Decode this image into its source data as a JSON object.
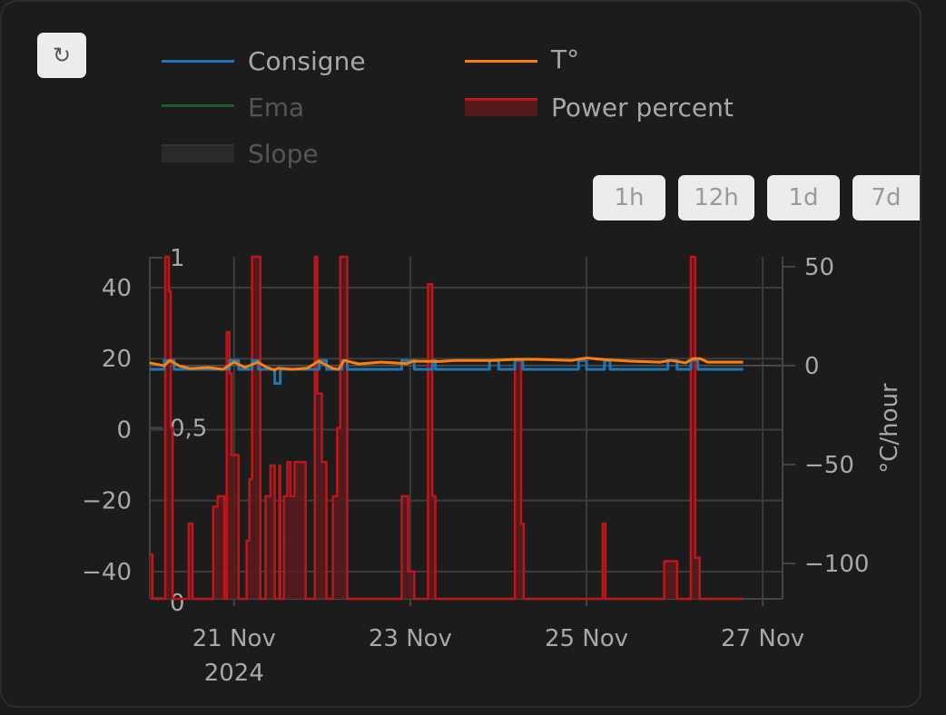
{
  "toolbar": {
    "refresh_icon": "↻",
    "refresh_icon_name": "refresh-icon"
  },
  "range_buttons": [
    {
      "label": "1h"
    },
    {
      "label": "12h"
    },
    {
      "label": "1d"
    },
    {
      "label": "7d"
    }
  ],
  "chart_data": {
    "type": "line",
    "x_axis": {
      "type": "date",
      "range": [
        "2024-11-20 01:03",
        "2024-11-27 05:25"
      ],
      "ticks": [
        {
          "value": "2024-11-21 00:00",
          "label": "21 Nov",
          "sublabel": "2024"
        },
        {
          "value": "2024-11-23 00:00",
          "label": "23 Nov"
        },
        {
          "value": "2024-11-25 00:00",
          "label": "25 Nov"
        },
        {
          "value": "2024-11-27 00:00",
          "label": "27 Nov"
        }
      ],
      "grid": true
    },
    "y_axis_left": {
      "range": [
        -47.7,
        48.7
      ],
      "ticks": [
        40,
        20,
        0,
        -20,
        -40
      ],
      "tick_labels": [
        "40",
        "20",
        "0",
        "−20",
        "−40"
      ],
      "grid": true
    },
    "y_axis_right": {
      "title": "°C/hour",
      "range": [
        -117.9,
        55
      ],
      "ticks": [
        50,
        0,
        -50,
        -100
      ],
      "tick_labels": [
        "50",
        "0",
        "−50",
        "−100"
      ],
      "zeroline": true
    },
    "y_axis_power": {
      "range": [
        0,
        1
      ],
      "ticks": [
        1,
        0.5,
        0
      ],
      "tick_labels": [
        "1",
        "0,5",
        "0"
      ]
    },
    "legend_placement": "top",
    "series": [
      {
        "name": "Consigne",
        "color": "#1f77b4",
        "axis": "left",
        "shape": "hv",
        "visible": true,
        "points": [
          [
            "2024-11-20 01:00",
            17
          ],
          [
            "2024-11-20 05:00",
            19.5
          ],
          [
            "2024-11-20 07:40",
            17
          ],
          [
            "2024-11-20 22:45",
            19.5
          ],
          [
            "2024-11-21 01:15",
            17
          ],
          [
            "2024-11-21 04:55",
            19.5
          ],
          [
            "2024-11-21 06:40",
            17
          ],
          [
            "2024-11-21 11:05",
            13
          ],
          [
            "2024-11-21 12:35",
            17
          ],
          [
            "2024-11-21 23:10",
            19.5
          ],
          [
            "2024-11-22 01:10",
            17
          ],
          [
            "2024-11-22 05:25",
            19.5
          ],
          [
            "2024-11-22 06:50",
            17
          ],
          [
            "2024-11-22 21:40",
            19.5
          ],
          [
            "2024-11-23 01:05",
            17
          ],
          [
            "2024-11-23 06:00",
            19.5
          ],
          [
            "2024-11-23 06:50",
            17
          ],
          [
            "2024-11-23 21:35",
            19.5
          ],
          [
            "2024-11-24 00:05",
            17
          ],
          [
            "2024-11-24 04:30",
            19.5
          ],
          [
            "2024-11-24 06:40",
            17
          ],
          [
            "2024-11-24 21:50",
            19.5
          ],
          [
            "2024-11-25 00:00",
            17
          ],
          [
            "2024-11-25 04:55",
            19.5
          ],
          [
            "2024-11-25 06:25",
            17
          ],
          [
            "2024-11-25 22:10",
            19.5
          ],
          [
            "2024-11-26 00:40",
            17
          ],
          [
            "2024-11-26 04:25",
            19.5
          ],
          [
            "2024-11-26 06:20",
            17
          ],
          [
            "2024-11-26 18:40",
            17
          ]
        ]
      },
      {
        "name": "T°",
        "color": "#ff7f0e",
        "axis": "left",
        "shape": "linear",
        "visible": true,
        "points": [
          [
            "2024-11-20 01:00",
            18.8
          ],
          [
            "2024-11-20 05:00",
            18
          ],
          [
            "2024-11-20 06:30",
            19.5
          ],
          [
            "2024-11-20 09:00",
            18
          ],
          [
            "2024-11-20 12:00",
            17.2
          ],
          [
            "2024-11-20 17:00",
            17.5
          ],
          [
            "2024-11-20 21:00",
            17
          ],
          [
            "2024-11-21 00:00",
            19
          ],
          [
            "2024-11-21 03:00",
            17.5
          ],
          [
            "2024-11-21 06:30",
            19
          ],
          [
            "2024-11-21 09:00",
            17.5
          ],
          [
            "2024-11-21 11:00",
            16.8
          ],
          [
            "2024-11-21 12:00",
            17.3
          ],
          [
            "2024-11-21 16:00",
            17
          ],
          [
            "2024-11-21 20:00",
            17.3
          ],
          [
            "2024-11-21 23:00",
            19.3
          ],
          [
            "2024-11-22 03:00",
            17.2
          ],
          [
            "2024-11-22 04:30",
            17
          ],
          [
            "2024-11-22 06:00",
            19.5
          ],
          [
            "2024-11-22 10:00",
            18.5
          ],
          [
            "2024-11-22 16:00",
            19
          ],
          [
            "2024-11-22 23:00",
            18.6
          ],
          [
            "2024-11-23 01:00",
            19.3
          ],
          [
            "2024-11-23 08:00",
            19.2
          ],
          [
            "2024-11-23 12:00",
            19.5
          ],
          [
            "2024-11-23 22:00",
            19.5
          ],
          [
            "2024-11-24 05:00",
            19.8
          ],
          [
            "2024-11-24 10:00",
            19.8
          ],
          [
            "2024-11-24 20:00",
            19.5
          ],
          [
            "2024-11-25 00:00",
            20.2
          ],
          [
            "2024-11-25 05:00",
            19.7
          ],
          [
            "2024-11-25 12:00",
            19.3
          ],
          [
            "2024-11-25 20:00",
            19
          ],
          [
            "2024-11-25 23:00",
            19.5
          ],
          [
            "2024-11-26 03:00",
            18.8
          ],
          [
            "2024-11-26 05:00",
            20
          ],
          [
            "2024-11-26 07:00",
            20
          ],
          [
            "2024-11-26 09:00",
            19
          ],
          [
            "2024-11-26 18:40",
            19
          ]
        ]
      },
      {
        "name": "Ema",
        "color": "#2ca02c",
        "visible": false
      },
      {
        "name": "Power percent",
        "color": "#c0161a",
        "fill": "#5a1a1c",
        "axis": "power",
        "shape": "hv",
        "visible": true,
        "points": [
          [
            "2024-11-20 01:00",
            0.13
          ],
          [
            "2024-11-20 01:45",
            0
          ],
          [
            "2024-11-20 05:15",
            1
          ],
          [
            "2024-11-20 06:15",
            0.9
          ],
          [
            "2024-11-20 06:45",
            0.5
          ],
          [
            "2024-11-20 07:15",
            0
          ],
          [
            "2024-11-20 11:40",
            0.22
          ],
          [
            "2024-11-20 12:40",
            0
          ],
          [
            "2024-11-20 18:20",
            0.27
          ],
          [
            "2024-11-20 19:30",
            0.3
          ],
          [
            "2024-11-20 21:20",
            0
          ],
          [
            "2024-11-20 22:00",
            0.78
          ],
          [
            "2024-11-20 22:45",
            0.66
          ],
          [
            "2024-11-20 23:20",
            0.42
          ],
          [
            "2024-11-21 01:15",
            0
          ],
          [
            "2024-11-21 03:25",
            0.17
          ],
          [
            "2024-11-21 04:10",
            0.35
          ],
          [
            "2024-11-21 04:55",
            1
          ],
          [
            "2024-11-21 07:10",
            0
          ],
          [
            "2024-11-21 08:35",
            0.3
          ],
          [
            "2024-11-21 09:55",
            0.39
          ],
          [
            "2024-11-21 11:05",
            0
          ],
          [
            "2024-11-21 12:20",
            0.39
          ],
          [
            "2024-11-21 12:35",
            0
          ],
          [
            "2024-11-21 13:35",
            0.3
          ],
          [
            "2024-11-21 14:30",
            0.4
          ],
          [
            "2024-11-21 15:20",
            0.3
          ],
          [
            "2024-11-21 16:30",
            0.4
          ],
          [
            "2024-11-21 19:30",
            0
          ],
          [
            "2024-11-21 22:00",
            1
          ],
          [
            "2024-11-21 22:40",
            0.6
          ],
          [
            "2024-11-21 23:55",
            0.4
          ],
          [
            "2024-11-22 01:10",
            0
          ],
          [
            "2024-11-22 02:55",
            0.3
          ],
          [
            "2024-11-22 04:05",
            0.5
          ],
          [
            "2024-11-22 04:55",
            1
          ],
          [
            "2024-11-22 06:50",
            0
          ],
          [
            "2024-11-22 21:40",
            0.3
          ],
          [
            "2024-11-22 23:25",
            0.08
          ],
          [
            "2024-11-23 01:05",
            0
          ],
          [
            "2024-11-23 04:50",
            0.92
          ],
          [
            "2024-11-23 06:00",
            0.3
          ],
          [
            "2024-11-23 06:50",
            0
          ],
          [
            "2024-11-24 04:30",
            0.7
          ],
          [
            "2024-11-24 06:10",
            0.22
          ],
          [
            "2024-11-24 06:55",
            0
          ],
          [
            "2024-11-25 04:25",
            0.22
          ],
          [
            "2024-11-25 05:10",
            0
          ],
          [
            "2024-11-25 21:10",
            0.11
          ],
          [
            "2024-11-26 00:40",
            0
          ],
          [
            "2024-11-26 04:25",
            1
          ],
          [
            "2024-11-26 05:35",
            0.12
          ],
          [
            "2024-11-26 06:50",
            0
          ],
          [
            "2024-11-26 18:40",
            0
          ]
        ]
      },
      {
        "name": "Slope",
        "color": "#2a2a2a",
        "axis": "right",
        "visible": false
      }
    ]
  }
}
